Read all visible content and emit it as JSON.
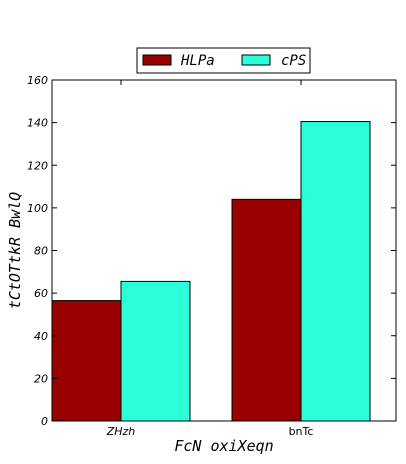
{
  "chart_data": {
    "type": "bar",
    "categories": [
      "ZHzh",
      "bnTc"
    ],
    "category_styles": [
      "italic",
      "normal"
    ],
    "series": [
      {
        "name": "HLPa",
        "values": [
          56.5,
          104.0
        ],
        "color": "#990000"
      },
      {
        "name": "cPS",
        "values": [
          65.5,
          140.5
        ],
        "color": "#2affd9"
      }
    ],
    "xlabel": "FcN oxiXeqn",
    "ylabel": "tCtOTtkR BwlQ",
    "ylim": [
      0,
      160
    ],
    "yticks": [
      0,
      20,
      40,
      60,
      80,
      100,
      120,
      140,
      160
    ],
    "legend": {
      "placement": "top-center",
      "columns": 2
    },
    "grid": false
  }
}
